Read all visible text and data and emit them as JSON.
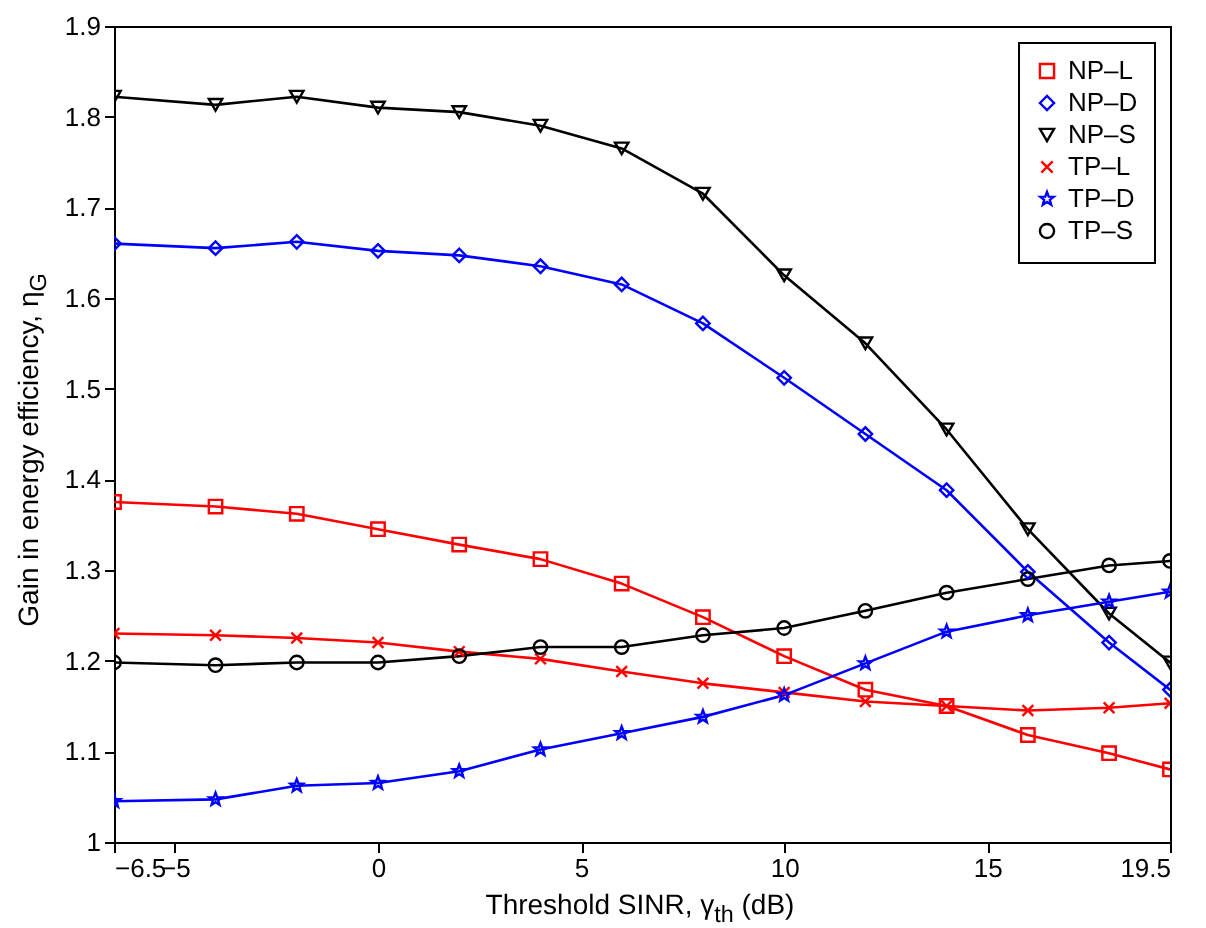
{
  "chart_data": {
    "type": "line",
    "xlabel": "Threshold SINR, γ$_{th}$ (dB)",
    "ylabel": "Gain in energy efficiency, η$_{G}$",
    "x": [
      -6.5,
      -4,
      -2,
      0,
      2,
      4,
      6,
      8,
      10,
      12,
      14,
      16,
      18,
      19.5
    ],
    "xlim": [
      -6.5,
      19.5
    ],
    "xticks": [
      {
        "value": -6.5,
        "label": "−6.5"
      },
      {
        "value": -5,
        "label": "−5"
      },
      0,
      5,
      10,
      15,
      {
        "value": 19.5,
        "label": "19.5"
      }
    ],
    "ylim": [
      1,
      1.9
    ],
    "yticks": [
      {
        "value": 1,
        "label": "1"
      },
      1.1,
      1.2,
      1.3,
      1.4,
      1.5,
      1.6,
      1.7,
      1.8,
      1.9
    ],
    "grid": false,
    "legend": "top right",
    "line_style": "solid",
    "series": [
      {
        "name": "NP–L",
        "color": "#ff0000",
        "marker": "square",
        "values": [
          1.375,
          1.37,
          1.362,
          1.345,
          1.328,
          1.312,
          1.285,
          1.248,
          1.205,
          1.168,
          1.15,
          1.118,
          1.098,
          1.08
        ]
      },
      {
        "name": "NP–D",
        "color": "#0000ff",
        "marker": "diamond",
        "values": [
          1.66,
          1.655,
          1.662,
          1.652,
          1.647,
          1.635,
          1.615,
          1.572,
          1.512,
          1.45,
          1.388,
          1.298,
          1.22,
          1.168
        ]
      },
      {
        "name": "NP–S",
        "color": "#000000",
        "marker": "triangle",
        "values": [
          1.822,
          1.813,
          1.822,
          1.81,
          1.805,
          1.79,
          1.765,
          1.715,
          1.625,
          1.55,
          1.455,
          1.345,
          1.252,
          1.198
        ]
      },
      {
        "name": "TP–L",
        "color": "#ff0000",
        "marker": "cross",
        "values": [
          1.23,
          1.228,
          1.225,
          1.22,
          1.21,
          1.202,
          1.188,
          1.175,
          1.165,
          1.155,
          1.15,
          1.145,
          1.148,
          1.153
        ]
      },
      {
        "name": "TP–D",
        "color": "#0000ff",
        "marker": "star",
        "values": [
          1.045,
          1.047,
          1.062,
          1.065,
          1.078,
          1.102,
          1.12,
          1.138,
          1.162,
          1.197,
          1.232,
          1.25,
          1.265,
          1.276
        ]
      },
      {
        "name": "TP–S",
        "color": "#000000",
        "marker": "circle",
        "values": [
          1.198,
          1.195,
          1.198,
          1.198,
          1.205,
          1.215,
          1.215,
          1.228,
          1.236,
          1.255,
          1.275,
          1.29,
          1.305,
          1.31
        ]
      }
    ]
  }
}
